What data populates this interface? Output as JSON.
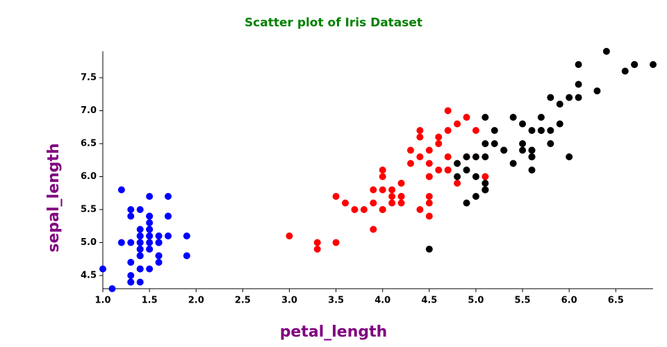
{
  "chart_data": {
    "type": "scatter",
    "title": "Scatter plot of Iris Dataset",
    "x_label": "petal_length",
    "y_label": "sepal_length",
    "xlim": [
      1.0,
      6.9
    ],
    "ylim": [
      4.3,
      7.9
    ],
    "xticks": [
      {
        "value": 1,
        "label": "1.0"
      },
      1.5,
      {
        "value": 2,
        "label": "2.0"
      },
      2.5,
      {
        "value": 3,
        "label": "3.0"
      },
      3.5,
      {
        "value": 4,
        "label": "4.0"
      },
      4.5,
      {
        "value": 5,
        "label": "5.0"
      },
      5.5,
      {
        "value": 6,
        "label": "6.0"
      },
      6.5
    ],
    "yticks": [
      4.5,
      {
        "value": 5,
        "label": "5.0"
      },
      5.5,
      {
        "value": 6,
        "label": "6.0"
      },
      6.5,
      {
        "value": 7,
        "label": "7.0"
      },
      7.5
    ],
    "title_color": "#008000",
    "label_color": "#800080",
    "series": [
      {
        "color": "#0000ff",
        "x": [
          1.4,
          1.4,
          1.3,
          1.5,
          1.4,
          1.7,
          1.4,
          1.5,
          1.4,
          1.5,
          1.5,
          1.6,
          1.4,
          1.1,
          1.2,
          1.5,
          1.3,
          1.4,
          1.7,
          1.5,
          1.7,
          1.5,
          1.0,
          1.7,
          1.9,
          1.6,
          1.6,
          1.5,
          1.4,
          1.6,
          1.6,
          1.5,
          1.5,
          1.4,
          1.5,
          1.2,
          1.3,
          1.4,
          1.3,
          1.5,
          1.3,
          1.3,
          1.3,
          1.6,
          1.9,
          1.4,
          1.6,
          1.4,
          1.5,
          1.4
        ],
        "values": [
          5.1,
          4.9,
          4.7,
          4.6,
          5.0,
          5.4,
          4.6,
          5.0,
          4.4,
          4.9,
          5.4,
          4.8,
          4.8,
          4.3,
          5.8,
          5.7,
          5.4,
          5.1,
          5.7,
          5.1,
          5.4,
          5.1,
          4.6,
          5.1,
          4.8,
          5.0,
          5.0,
          5.2,
          5.2,
          4.7,
          4.8,
          5.4,
          5.2,
          5.5,
          4.9,
          5.0,
          5.5,
          4.9,
          4.4,
          5.1,
          5.0,
          4.5,
          4.4,
          5.0,
          5.1,
          4.8,
          5.1,
          4.6,
          5.3,
          5.0
        ]
      },
      {
        "color": "#ff0000",
        "x": [
          4.7,
          4.5,
          4.9,
          4.0,
          4.6,
          4.5,
          4.7,
          3.3,
          4.6,
          3.9,
          3.5,
          4.2,
          4.0,
          4.7,
          3.6,
          4.4,
          4.5,
          4.1,
          4.5,
          3.9,
          4.8,
          4.0,
          4.9,
          4.7,
          4.3,
          4.4,
          4.8,
          5.0,
          4.5,
          3.5,
          3.8,
          3.7,
          3.9,
          5.1,
          4.5,
          4.5,
          4.7,
          4.4,
          4.1,
          4.0,
          4.4,
          4.6,
          4.0,
          3.3,
          4.2,
          4.2,
          4.2,
          4.3,
          3.0,
          4.1
        ],
        "values": [
          7.0,
          6.4,
          6.9,
          5.5,
          6.5,
          5.7,
          6.3,
          4.9,
          6.6,
          5.2,
          5.0,
          5.9,
          6.0,
          6.1,
          5.6,
          6.7,
          5.6,
          5.8,
          6.2,
          5.6,
          5.9,
          6.1,
          6.3,
          6.1,
          6.4,
          6.6,
          6.8,
          6.7,
          6.0,
          5.7,
          5.5,
          5.5,
          5.8,
          6.0,
          5.4,
          6.0,
          6.7,
          6.3,
          5.6,
          5.5,
          5.5,
          6.1,
          5.8,
          5.0,
          5.6,
          5.7,
          5.7,
          6.2,
          5.1,
          5.7
        ]
      },
      {
        "color": "#000000",
        "x": [
          6.0,
          5.1,
          5.9,
          5.6,
          5.8,
          6.6,
          4.5,
          6.3,
          5.8,
          6.1,
          5.1,
          5.3,
          5.5,
          5.0,
          5.1,
          5.3,
          5.5,
          6.7,
          6.9,
          5.0,
          5.7,
          4.9,
          6.7,
          4.9,
          5.7,
          6.0,
          4.8,
          4.9,
          5.6,
          5.8,
          6.1,
          6.4,
          5.6,
          5.1,
          5.6,
          6.1,
          5.6,
          5.5,
          4.8,
          5.4,
          5.6,
          5.1,
          5.1,
          5.9,
          5.7,
          5.2,
          5.0,
          5.2,
          5.4,
          5.1
        ],
        "values": [
          6.3,
          5.8,
          7.1,
          6.3,
          6.5,
          7.6,
          4.9,
          7.3,
          6.7,
          7.2,
          6.5,
          6.4,
          6.8,
          5.7,
          5.8,
          6.4,
          6.5,
          7.7,
          7.7,
          6.0,
          6.9,
          5.6,
          7.7,
          6.3,
          6.7,
          7.2,
          6.2,
          6.1,
          6.4,
          7.2,
          7.4,
          7.9,
          6.4,
          6.3,
          6.1,
          7.7,
          6.3,
          6.4,
          6.0,
          6.9,
          6.7,
          6.9,
          5.8,
          6.8,
          6.7,
          6.7,
          6.3,
          6.5,
          6.2,
          5.9
        ]
      }
    ]
  }
}
